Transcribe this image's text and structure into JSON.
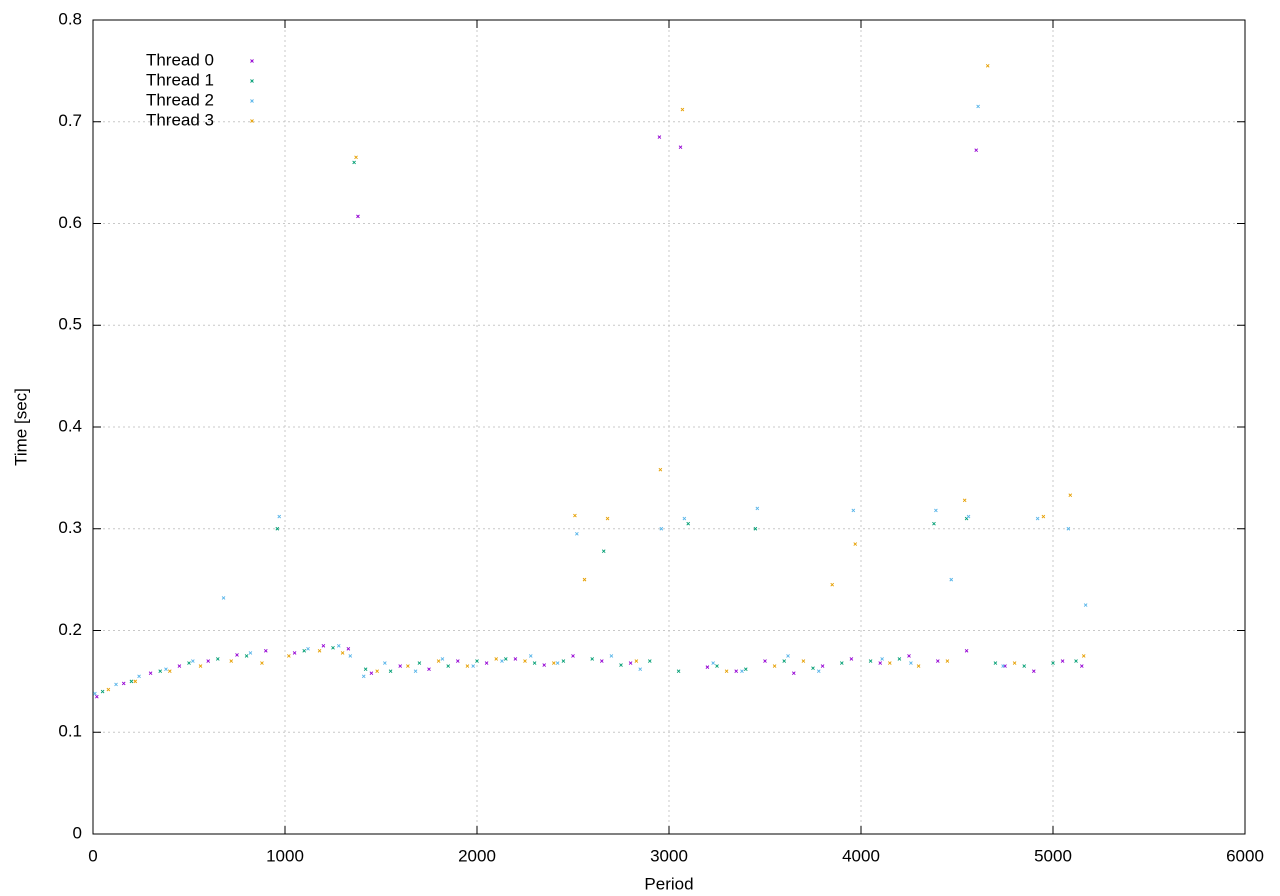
{
  "chart_data": {
    "type": "scatter",
    "x_label": "Period",
    "y_label": "Time [sec]",
    "xlim": [
      0,
      6000
    ],
    "xticks": [
      0,
      1000,
      2000,
      3000,
      4000,
      5000,
      6000
    ],
    "ylim": [
      0,
      0.8
    ],
    "yticks": [
      0,
      0.1,
      0.2,
      0.3,
      0.4,
      0.5,
      0.6,
      0.7,
      0.8
    ],
    "grid": true,
    "legend": "top-left",
    "series": [
      {
        "name": "Thread 0",
        "color": "#9400d3",
        "x": [
          20,
          160,
          300,
          450,
          600,
          750,
          900,
          1050,
          1200,
          1330,
          1380,
          1450,
          1600,
          1750,
          1900,
          2050,
          2200,
          2350,
          2500,
          2650,
          2800,
          2950,
          3060,
          3200,
          3350,
          3500,
          3650,
          3800,
          3950,
          4100,
          4250,
          4400,
          4550,
          4600,
          4750,
          4900,
          5050,
          5150
        ],
        "values": [
          0.135,
          0.148,
          0.158,
          0.165,
          0.17,
          0.176,
          0.18,
          0.178,
          0.185,
          0.182,
          0.607,
          0.158,
          0.165,
          0.162,
          0.17,
          0.168,
          0.172,
          0.166,
          0.175,
          0.17,
          0.168,
          0.685,
          0.675,
          0.164,
          0.16,
          0.17,
          0.158,
          0.165,
          0.172,
          0.168,
          0.175,
          0.17,
          0.18,
          0.672,
          0.165,
          0.16,
          0.17,
          0.165
        ]
      },
      {
        "name": "Thread 1",
        "color": "#009e73",
        "x": [
          50,
          200,
          350,
          500,
          650,
          800,
          960,
          1100,
          1250,
          1360,
          1420,
          1550,
          1700,
          1850,
          2000,
          2150,
          2300,
          2450,
          2600,
          2660,
          2750,
          2900,
          3050,
          3100,
          3250,
          3400,
          3450,
          3600,
          3750,
          3900,
          4050,
          4200,
          4380,
          4550,
          4700,
          4850,
          5000,
          5120
        ],
        "values": [
          0.14,
          0.15,
          0.16,
          0.168,
          0.172,
          0.175,
          0.3,
          0.18,
          0.183,
          0.66,
          0.162,
          0.16,
          0.168,
          0.165,
          0.17,
          0.172,
          0.168,
          0.17,
          0.172,
          0.278,
          0.166,
          0.17,
          0.16,
          0.305,
          0.165,
          0.162,
          0.3,
          0.17,
          0.163,
          0.168,
          0.17,
          0.172,
          0.305,
          0.31,
          0.168,
          0.165,
          0.168,
          0.17
        ]
      },
      {
        "name": "Thread 2",
        "color": "#56b4e9",
        "x": [
          10,
          120,
          240,
          380,
          520,
          680,
          820,
          970,
          1120,
          1280,
          1340,
          1410,
          1520,
          1680,
          1820,
          1980,
          2130,
          2280,
          2420,
          2520,
          2700,
          2850,
          2960,
          3080,
          3230,
          3380,
          3460,
          3620,
          3780,
          3960,
          4110,
          4260,
          4390,
          4470,
          4560,
          4610,
          4740,
          4920,
          5080,
          5170
        ],
        "values": [
          0.138,
          0.147,
          0.155,
          0.162,
          0.17,
          0.232,
          0.178,
          0.312,
          0.182,
          0.185,
          0.175,
          0.155,
          0.168,
          0.16,
          0.172,
          0.165,
          0.17,
          0.175,
          0.168,
          0.295,
          0.175,
          0.162,
          0.3,
          0.31,
          0.168,
          0.16,
          0.32,
          0.175,
          0.16,
          0.318,
          0.172,
          0.168,
          0.318,
          0.25,
          0.312,
          0.715,
          0.165,
          0.31,
          0.3,
          0.225
        ]
      },
      {
        "name": "Thread 3",
        "color": "#e69f00",
        "x": [
          80,
          220,
          400,
          560,
          720,
          880,
          1020,
          1180,
          1300,
          1370,
          1480,
          1640,
          1800,
          1950,
          2100,
          2250,
          2400,
          2510,
          2560,
          2680,
          2830,
          2955,
          3070,
          3300,
          3550,
          3700,
          3850,
          3970,
          4150,
          4300,
          4450,
          4540,
          4660,
          4800,
          4950,
          5090,
          5160
        ],
        "values": [
          0.142,
          0.15,
          0.16,
          0.165,
          0.17,
          0.168,
          0.175,
          0.18,
          0.178,
          0.665,
          0.16,
          0.165,
          0.17,
          0.165,
          0.172,
          0.17,
          0.168,
          0.313,
          0.25,
          0.31,
          0.17,
          0.358,
          0.712,
          0.16,
          0.165,
          0.17,
          0.245,
          0.285,
          0.168,
          0.165,
          0.17,
          0.328,
          0.755,
          0.168,
          0.312,
          0.333,
          0.175
        ]
      }
    ]
  }
}
